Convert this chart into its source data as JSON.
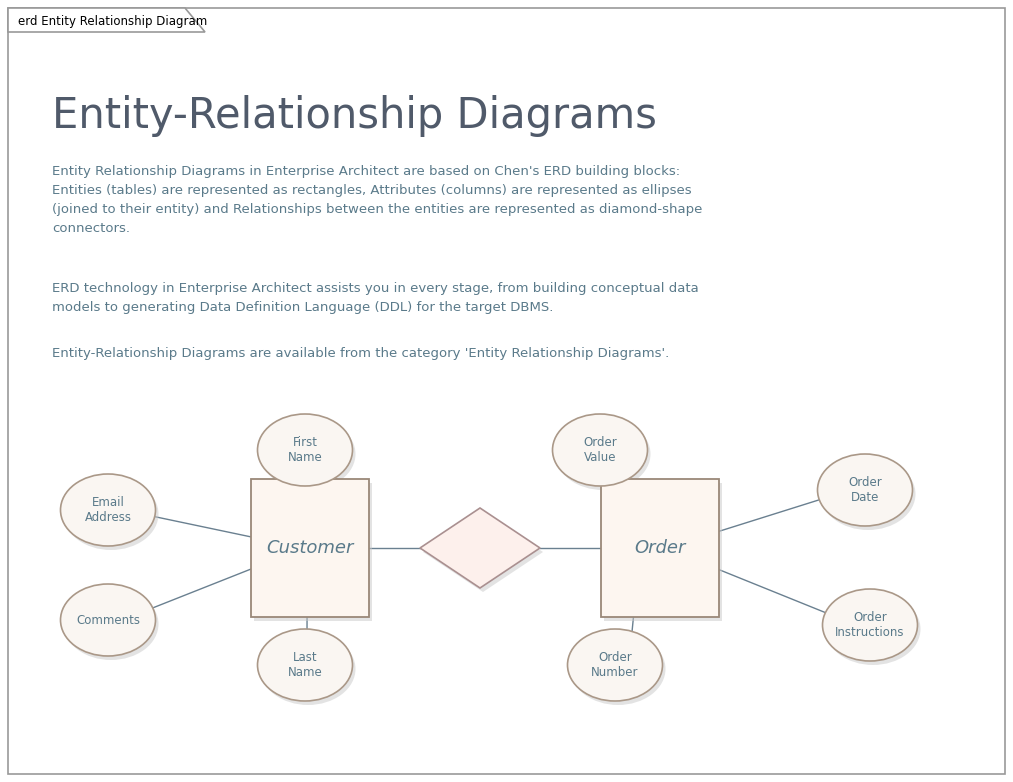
{
  "title": "Entity-Relationship Diagrams",
  "tab_label": "erd Entity Relationship Diagram",
  "para1": "Entity Relationship Diagrams in Enterprise Architect are based on Chen's ERD building blocks:\nEntities (tables) are represented as rectangles, Attributes (columns) are represented as ellipses\n(joined to their entity) and Relationships between the entities are represented as diamond-shape\nconnectors.",
  "para2": "ERD technology in Enterprise Architect assists you in every stage, from building conceptual data\nmodels to generating Data Definition Language (DDL) for the target DBMS.",
  "para3": "Entity-Relationship Diagrams are available from the category 'Entity Relationship Diagrams'.",
  "text_color": "#5a7a8a",
  "title_color": "#505a6a",
  "line_color": "#6a8090",
  "box_fill": "#fdf6f0",
  "box_edge": "#9a8878",
  "ellipse_fill": "#faf6f2",
  "ellipse_edge": "#aa9888",
  "diamond_fill": "#fdf0ec",
  "diamond_edge": "#aa9090",
  "bg_color": "#ffffff",
  "border_color": "#999999",
  "shadow_color": "#c8c8c8"
}
